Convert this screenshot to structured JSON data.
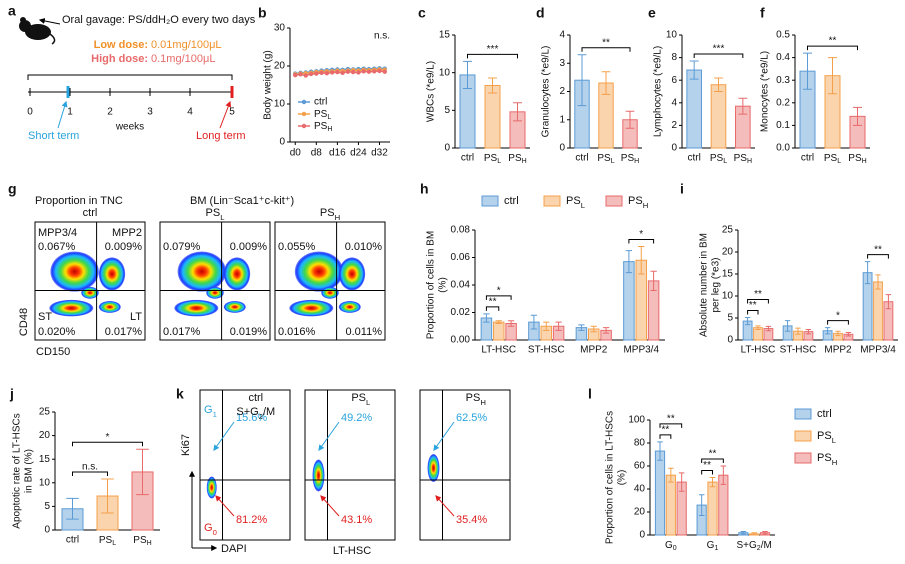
{
  "schematic": {
    "panel": "a",
    "title": "Oral gavage: PS/ddH₂O every two days",
    "low_dose_label": "Low dose:",
    "low_dose": "0.01mg/100μL",
    "high_dose_label": "High dose:",
    "high_dose": "0.1mg/100μL",
    "weeks": [
      "0",
      "1",
      "2",
      "3",
      "4",
      "5"
    ],
    "axis_label": "weeks",
    "short_term": "Short term",
    "long_term": "Long term"
  },
  "chart_data": [
    {
      "type": "line",
      "panel": "b",
      "ylabel": "Body weight (g)",
      "x": [
        0,
        2,
        4,
        6,
        8,
        10,
        12,
        14,
        16,
        18,
        20,
        22,
        24,
        26,
        28,
        30,
        32,
        34
      ],
      "xlim": [
        -2,
        36
      ],
      "xticks": [
        {
          "value": 0,
          "label": "d0"
        },
        {
          "value": 8,
          "label": "d8"
        },
        {
          "value": 16,
          "label": "d16"
        },
        {
          "value": 24,
          "label": "d24"
        },
        {
          "value": 32,
          "label": "d32"
        }
      ],
      "ylim": [
        0,
        30
      ],
      "yticks": [
        0,
        10,
        20,
        30
      ],
      "series": [
        {
          "name": "ctrl",
          "color": "#5b9bd5",
          "values": [
            18.0,
            18.2,
            18.3,
            18.5,
            18.6,
            18.8,
            18.9,
            19.0,
            19.1,
            19.0,
            19.2,
            19.1,
            19.2,
            19.3,
            19.2,
            19.3,
            19.4,
            19.3
          ]
        },
        {
          "name": "PSL",
          "color": "#f4a04a",
          "values": [
            17.8,
            18.0,
            18.1,
            18.2,
            18.4,
            18.5,
            18.6,
            18.6,
            18.8,
            18.7,
            18.8,
            18.9,
            18.8,
            19.0,
            18.9,
            19.0,
            19.1,
            19.0
          ]
        },
        {
          "name": "PSH",
          "color": "#e86a6a",
          "values": [
            17.6,
            17.8,
            17.5,
            17.9,
            18.0,
            18.2,
            18.1,
            18.3,
            18.4,
            18.2,
            18.5,
            18.4,
            18.3,
            18.6,
            18.5,
            18.6,
            18.7,
            18.5
          ]
        }
      ],
      "legend": "lower left",
      "annotations": [
        {
          "text": "n.s."
        }
      ]
    },
    {
      "type": "bar",
      "panel": "c",
      "ylabel": "WBCs (*e9/L)",
      "categories": [
        "ctrl",
        "PSL",
        "PSH"
      ],
      "values": [
        9.7,
        8.3,
        4.8
      ],
      "errors": [
        1.8,
        1.0,
        1.2
      ],
      "colors": [
        "#5b9bd5",
        "#f4a04a",
        "#e86a6a"
      ],
      "ylim": [
        0,
        15
      ],
      "yticks": [
        0,
        5,
        10,
        15
      ],
      "annotations": [
        {
          "text": "***",
          "between": [
            0,
            2
          ]
        }
      ]
    },
    {
      "type": "bar",
      "panel": "d",
      "ylabel": "Granulocytes (*e9/L)",
      "categories": [
        "ctrl",
        "PSL",
        "PSH"
      ],
      "values": [
        2.4,
        2.3,
        1.0
      ],
      "errors": [
        0.9,
        0.4,
        0.3
      ],
      "colors": [
        "#5b9bd5",
        "#f4a04a",
        "#e86a6a"
      ],
      "ylim": [
        0,
        4
      ],
      "yticks": [
        0,
        1,
        2,
        3,
        4
      ],
      "annotations": [
        {
          "text": "**",
          "between": [
            0,
            2
          ]
        }
      ]
    },
    {
      "type": "bar",
      "panel": "e",
      "ylabel": "Lymphocytes (*e9/L)",
      "categories": [
        "ctrl",
        "PSL",
        "PSH"
      ],
      "values": [
        6.9,
        5.6,
        3.7
      ],
      "errors": [
        0.8,
        0.6,
        0.7
      ],
      "colors": [
        "#5b9bd5",
        "#f4a04a",
        "#e86a6a"
      ],
      "ylim": [
        0,
        10
      ],
      "yticks": [
        0,
        2,
        4,
        6,
        8,
        10
      ],
      "annotations": [
        {
          "text": "***",
          "between": [
            0,
            2
          ]
        }
      ]
    },
    {
      "type": "bar",
      "panel": "f",
      "ylabel": "Monocytes (*e9/L)",
      "categories": [
        "ctrl",
        "PSL",
        "PSH"
      ],
      "values": [
        0.34,
        0.32,
        0.14
      ],
      "errors": [
        0.08,
        0.08,
        0.04
      ],
      "colors": [
        "#5b9bd5",
        "#f4a04a",
        "#e86a6a"
      ],
      "ylim": [
        0,
        0.5
      ],
      "yticks": [
        {
          "value": 0,
          "label": "0.0"
        },
        0.1,
        0.2,
        0.3,
        0.4,
        0.5
      ],
      "annotations": [
        {
          "text": "**",
          "between": [
            0,
            2
          ]
        }
      ]
    },
    {
      "type": "grouped_bar",
      "panel": "h",
      "ylabel": [
        "Proportion of cells in BM",
        "(%)"
      ],
      "categories": [
        "LT-HSC",
        "ST-HSC",
        "MPP2",
        "MPP3/4"
      ],
      "series": [
        {
          "name": "ctrl",
          "color": "#5b9bd5",
          "values": [
            0.016,
            0.013,
            0.009,
            0.057
          ],
          "errors": [
            0.003,
            0.005,
            0.002,
            0.008
          ]
        },
        {
          "name": "PSL",
          "color": "#f4a04a",
          "values": [
            0.013,
            0.01,
            0.008,
            0.058
          ],
          "errors": [
            0.001,
            0.003,
            0.002,
            0.01
          ]
        },
        {
          "name": "PSH",
          "color": "#e86a6a",
          "values": [
            0.012,
            0.01,
            0.007,
            0.043
          ],
          "errors": [
            0.002,
            0.003,
            0.002,
            0.007
          ]
        }
      ],
      "ylim": [
        0,
        0.08
      ],
      "yticks": [
        {
          "value": 0,
          "label": "0.00"
        },
        0.02,
        0.04,
        0.06,
        0.08
      ],
      "legend": "top",
      "annotations": [
        {
          "text": "**",
          "category": 0,
          "between": [
            0,
            1
          ]
        },
        {
          "text": "*",
          "category": 0,
          "between": [
            0,
            2
          ]
        },
        {
          "text": "*",
          "category": 3,
          "between": [
            0,
            2
          ]
        }
      ]
    },
    {
      "type": "grouped_bar",
      "panel": "i",
      "ylabel": [
        "Absolute number in BM",
        "per leg (*e3)"
      ],
      "categories": [
        "LT-HSC",
        "ST-HSC",
        "MPP2",
        "MPP3/4"
      ],
      "series": [
        {
          "name": "ctrl",
          "color": "#5b9bd5",
          "values": [
            4.3,
            3.2,
            2.1,
            15.3
          ],
          "errors": [
            0.8,
            1.2,
            0.7,
            2.5
          ]
        },
        {
          "name": "PSL",
          "color": "#f4a04a",
          "values": [
            2.8,
            2.0,
            1.5,
            13.2
          ],
          "errors": [
            0.4,
            0.7,
            0.5,
            1.6
          ]
        },
        {
          "name": "PSH",
          "color": "#e86a6a",
          "values": [
            2.6,
            1.9,
            1.3,
            8.7
          ],
          "errors": [
            0.5,
            0.5,
            0.4,
            1.6
          ]
        }
      ],
      "ylim": [
        0,
        25
      ],
      "yticks": [
        0,
        5,
        10,
        15,
        20,
        25
      ],
      "annotations": [
        {
          "text": "**",
          "category": 0,
          "between": [
            0,
            1
          ]
        },
        {
          "text": "**",
          "category": 0,
          "between": [
            0,
            2
          ]
        },
        {
          "text": "*",
          "category": 2,
          "between": [
            0,
            2
          ]
        },
        {
          "text": "**",
          "category": 3,
          "between": [
            0,
            2
          ]
        }
      ]
    },
    {
      "type": "bar",
      "panel": "j",
      "ylabel": [
        "Apoptotic rate of LT-HSCs",
        "in BM (%)"
      ],
      "categories": [
        "ctrl",
        "PSL",
        "PSH"
      ],
      "values": [
        4.5,
        7.2,
        12.3
      ],
      "errors": [
        2.2,
        3.6,
        4.8
      ],
      "colors": [
        "#5b9bd5",
        "#f4a04a",
        "#e86a6a"
      ],
      "ylim": [
        0,
        25
      ],
      "yticks": [
        0,
        5,
        10,
        15,
        20,
        25
      ],
      "annotations": [
        {
          "text": "n.s.",
          "between": [
            0,
            1
          ]
        },
        {
          "text": "*",
          "between": [
            0,
            2
          ]
        }
      ]
    },
    {
      "type": "grouped_bar",
      "panel": "l",
      "ylabel": [
        "Proportion of cells in LT-HSCs",
        "(%)"
      ],
      "categories": [
        "G0",
        "G1",
        "S+G2/M"
      ],
      "series": [
        {
          "name": "ctrl",
          "color": "#5b9bd5",
          "values": [
            73,
            26,
            2
          ],
          "errors": [
            8,
            9,
            1
          ]
        },
        {
          "name": "PSL",
          "color": "#f4a04a",
          "values": [
            52,
            46,
            1
          ],
          "errors": [
            6,
            4,
            1
          ]
        },
        {
          "name": "PSH",
          "color": "#e86a6a",
          "values": [
            46,
            52,
            2
          ],
          "errors": [
            8,
            8,
            1
          ]
        }
      ],
      "ylim": [
        0,
        100
      ],
      "yticks": [
        0,
        20,
        40,
        60,
        80,
        100
      ],
      "legend": "right",
      "annotations": [
        {
          "text": "**",
          "category": 0,
          "between": [
            0,
            1
          ]
        },
        {
          "text": "**",
          "category": 0,
          "between": [
            0,
            2
          ]
        },
        {
          "text": "**",
          "category": 1,
          "between": [
            0,
            1
          ]
        },
        {
          "text": "**",
          "category": 1,
          "between": [
            0,
            2
          ]
        }
      ]
    }
  ],
  "flow_g": {
    "panel": "g",
    "header": [
      "Proportion in TNC",
      "BM (Lin⁻Sca1⁺c-kit⁺)"
    ],
    "xlabel": "CD150",
    "ylabel": "CD48",
    "quadrants": [
      "MPP3/4",
      "MPP2",
      "ST",
      "LT"
    ],
    "panels": [
      {
        "title": "ctrl",
        "values": [
          "0.067%",
          "0.009%",
          "0.020%",
          "0.017%"
        ]
      },
      {
        "title": "PSL",
        "values": [
          "0.079%",
          "0.009%",
          "0.017%",
          "0.019%"
        ]
      },
      {
        "title": "PSH",
        "values": [
          "0.055%",
          "0.010%",
          "0.016%",
          "0.011%"
        ]
      }
    ]
  },
  "flow_k": {
    "panel": "k",
    "g1_label": "G1",
    "s_label": "S+G2/M",
    "g0_label": "G0",
    "xlabel": "DAPI",
    "ylabel": "Ki67",
    "footer": "LT-HSC",
    "panels": [
      {
        "title": "ctrl",
        "g1": "15.6%",
        "g0": "81.2%"
      },
      {
        "title": "PSL",
        "g1": "49.2%",
        "g0": "43.1%"
      },
      {
        "title": "PSH",
        "g1": "62.5%",
        "g0": "35.4%"
      }
    ]
  }
}
